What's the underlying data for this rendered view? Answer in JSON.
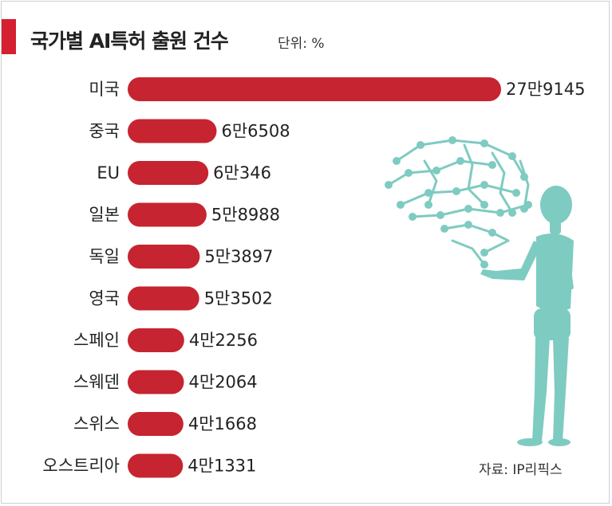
{
  "header": {
    "title": "국가별 AI특허 출원 건수",
    "unit": "단위: %"
  },
  "footer": {
    "source": "자료: IP리픽스"
  },
  "colors": {
    "accent": "#d42030",
    "bar": "#c62430",
    "illustration": "#7ecbc1"
  },
  "illustration": {
    "icon": "robot-with-circuit-brain-icon"
  },
  "chart_data": {
    "type": "bar",
    "orientation": "horizontal",
    "categories": [
      "미국",
      "중국",
      "EU",
      "일본",
      "독일",
      "영국",
      "스페인",
      "스웨덴",
      "스위스",
      "오스트리아"
    ],
    "values": [
      279145,
      66508,
      60346,
      58988,
      53897,
      53502,
      42256,
      42064,
      41668,
      41331
    ],
    "value_labels": [
      "27만9145",
      "6만6508",
      "6만346",
      "5만8988",
      "5만3897",
      "5만3502",
      "4만2256",
      "4만2064",
      "4만1668",
      "4만1331"
    ],
    "title": "국가별 AI특허 출원 건수",
    "xlabel": "",
    "ylabel": "",
    "grid": false,
    "legend": "none"
  }
}
